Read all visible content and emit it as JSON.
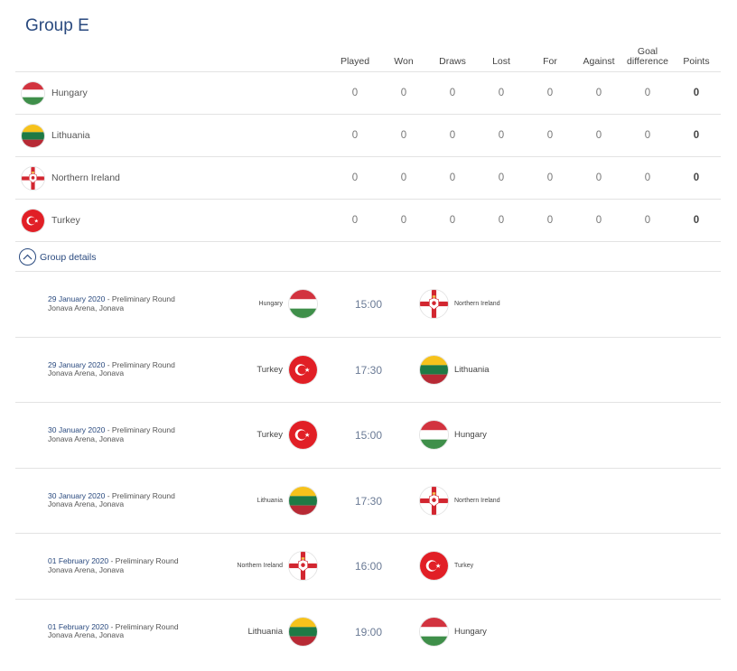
{
  "group": {
    "title": "Group E"
  },
  "columns": {
    "played": "Played",
    "won": "Won",
    "draws": "Draws",
    "lost": "Lost",
    "for": "For",
    "against": "Against",
    "goal_diff_line1": "Goal",
    "goal_diff_line2": "difference",
    "points": "Points"
  },
  "standings": [
    {
      "team": "Hungary",
      "flag": "hungary-flag-icon",
      "played": "0",
      "won": "0",
      "draws": "0",
      "lost": "0",
      "for": "0",
      "against": "0",
      "goal_diff": "0",
      "points": "0"
    },
    {
      "team": "Lithuania",
      "flag": "lithuania-flag-icon",
      "played": "0",
      "won": "0",
      "draws": "0",
      "lost": "0",
      "for": "0",
      "against": "0",
      "goal_diff": "0",
      "points": "0"
    },
    {
      "team": "Northern Ireland",
      "flag": "northern-ireland-flag-icon",
      "played": "0",
      "won": "0",
      "draws": "0",
      "lost": "0",
      "for": "0",
      "against": "0",
      "goal_diff": "0",
      "points": "0"
    },
    {
      "team": "Turkey",
      "flag": "turkey-flag-icon",
      "played": "0",
      "won": "0",
      "draws": "0",
      "lost": "0",
      "for": "0",
      "against": "0",
      "goal_diff": "0",
      "points": "0"
    }
  ],
  "details_toggle": {
    "label": "Group details",
    "icon": "chevron-up-icon"
  },
  "matches": [
    {
      "date": "29 January 2020",
      "round": " - Preliminary Round",
      "venue": "Jonava Arena, Jonava",
      "home": "Hungary",
      "home_flag": "hungary-flag-icon",
      "time": "15:00",
      "away": "Northern Ireland",
      "away_flag": "northern-ireland-flag-icon"
    },
    {
      "date": "29 January 2020",
      "round": " - Preliminary Round",
      "venue": "Jonava Arena, Jonava",
      "home": "Turkey",
      "home_flag": "turkey-flag-icon",
      "time": "17:30",
      "away": "Lithuania",
      "away_flag": "lithuania-flag-icon"
    },
    {
      "date": "30 January 2020",
      "round": " - Preliminary Round",
      "venue": "Jonava Arena, Jonava",
      "home": "Turkey",
      "home_flag": "turkey-flag-icon",
      "time": "15:00",
      "away": "Hungary",
      "away_flag": "hungary-flag-icon"
    },
    {
      "date": "30 January 2020",
      "round": " - Preliminary Round",
      "venue": "Jonava Arena, Jonava",
      "home": "Lithuania",
      "home_flag": "lithuania-flag-icon",
      "time": "17:30",
      "away": "Northern Ireland",
      "away_flag": "northern-ireland-flag-icon"
    },
    {
      "date": "01 February 2020",
      "round": " - Preliminary Round",
      "venue": "Jonava Arena, Jonava",
      "home": "Northern Ireland",
      "home_flag": "northern-ireland-flag-icon",
      "time": "16:00",
      "away": "Turkey",
      "away_flag": "turkey-flag-icon"
    },
    {
      "date": "01 February 2020",
      "round": " - Preliminary Round",
      "venue": "Jonava Arena, Jonava",
      "home": "Lithuania",
      "home_flag": "lithuania-flag-icon",
      "time": "19:00",
      "away": "Hungary",
      "away_flag": "hungary-flag-icon"
    }
  ],
  "colors": {
    "accent": "#2a4a7f",
    "time": "#6a7a95",
    "divider": "#e3e3e3"
  }
}
